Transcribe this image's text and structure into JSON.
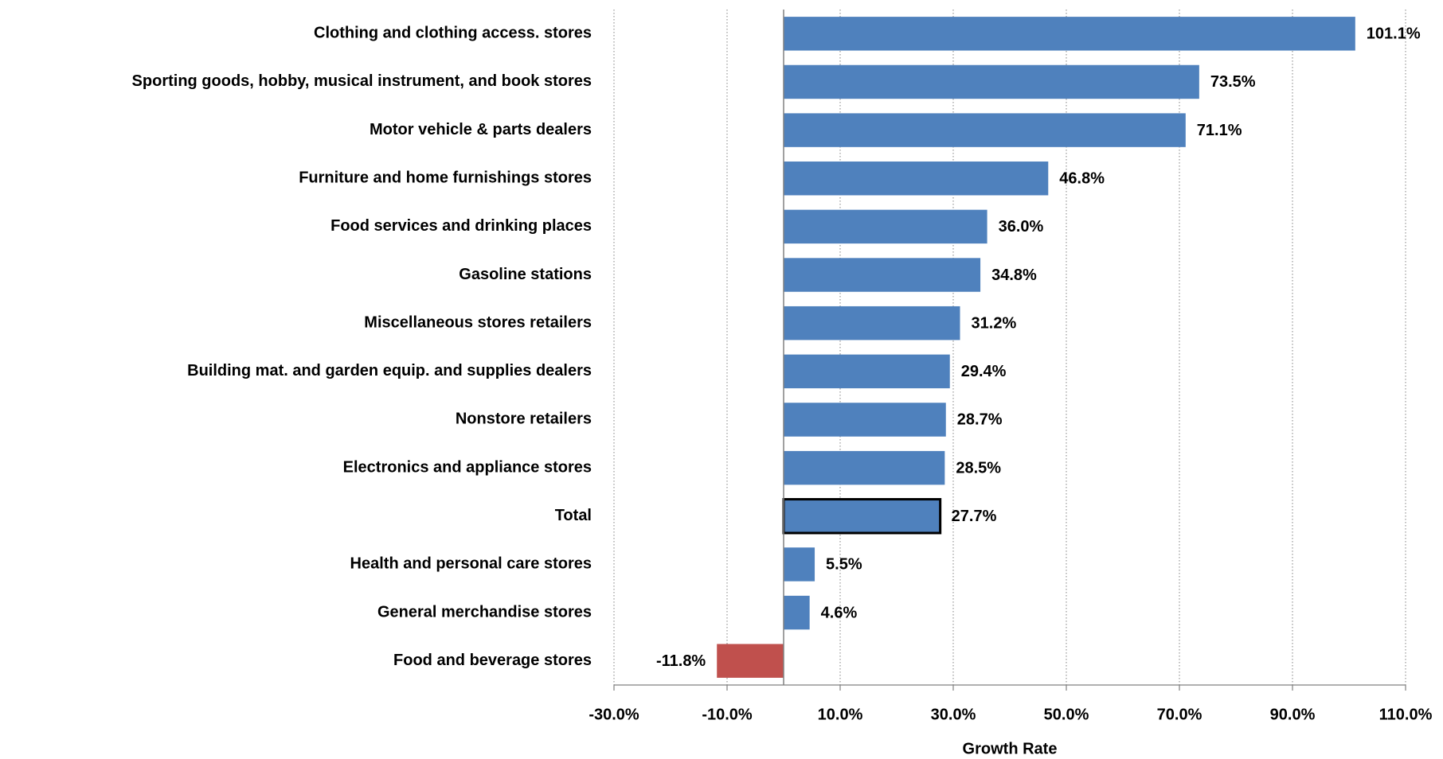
{
  "chart_data": {
    "type": "barh",
    "xlabel": "Growth Rate",
    "categories": [
      "Clothing and clothing access. stores",
      "Sporting goods, hobby, musical instrument, and book stores",
      "Motor vehicle & parts dealers",
      "Furniture and home furnishings stores",
      "Food services and drinking places",
      "Gasoline stations",
      "Miscellaneous stores retailers",
      "Building mat. and garden equip. and supplies dealers",
      "Nonstore retailers",
      "Electronics and appliance stores",
      "Total",
      "Health and personal care stores",
      "General merchandise stores",
      "Food and beverage stores"
    ],
    "values": [
      101.1,
      73.5,
      71.1,
      46.8,
      36.0,
      34.8,
      31.2,
      29.4,
      28.7,
      28.5,
      27.7,
      5.5,
      4.6,
      -11.8
    ],
    "value_labels": [
      "101.1%",
      "73.5%",
      "71.1%",
      "46.8%",
      "36.0%",
      "34.8%",
      "31.2%",
      "29.4%",
      "28.7%",
      "28.5%",
      "27.7%",
      "5.5%",
      "4.6%",
      "-11.8%"
    ],
    "color": "#4f81bd",
    "negative_color": "#c0504d",
    "bar_outline": {
      "index": 10,
      "color": "#000000"
    },
    "xlim": [
      -30,
      110
    ],
    "xticks": [
      {
        "value": -30,
        "label": "-30.0%"
      },
      {
        "value": -10,
        "label": "-10.0%"
      },
      {
        "value": 10,
        "label": "10.0%"
      },
      {
        "value": 30,
        "label": "30.0%"
      },
      {
        "value": 50,
        "label": "50.0%"
      },
      {
        "value": 70,
        "label": "70.0%"
      },
      {
        "value": 90,
        "label": "90.0%"
      },
      {
        "value": 110,
        "label": "110.0%"
      }
    ],
    "grid": true
  }
}
